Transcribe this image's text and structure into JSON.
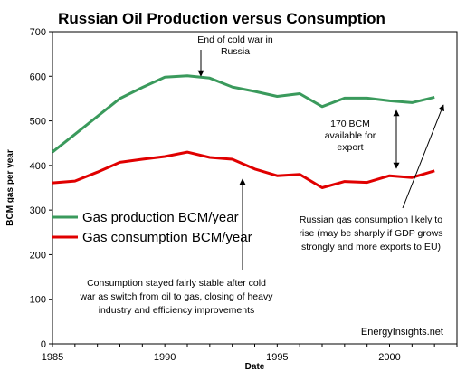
{
  "chart_data": {
    "type": "line",
    "title": "Russian Oil Production versus Consumption",
    "xlabel": "Date",
    "ylabel": "BCM gas per year",
    "xlim": [
      1985,
      2003
    ],
    "ylim": [
      0,
      700
    ],
    "x_ticks": [
      1985,
      1990,
      1995,
      2000
    ],
    "y_ticks": [
      0,
      100,
      200,
      300,
      400,
      500,
      600,
      700
    ],
    "grid": false,
    "legend_position": "left",
    "series": [
      {
        "name": "Gas production BCM/year",
        "color": "#3a9a5c",
        "x": [
          1985,
          1986,
          1987,
          1988,
          1989,
          1990,
          1991,
          1992,
          1993,
          1994,
          1995,
          1996,
          1997,
          1998,
          1999,
          2000,
          2001,
          2002
        ],
        "values": [
          430,
          470,
          510,
          550,
          575,
          598,
          601,
          596,
          576,
          566,
          555,
          561,
          532,
          551,
          551,
          545,
          541,
          553
        ]
      },
      {
        "name": "Gas consumption BCM/year",
        "color": "#e00000",
        "x": [
          1985,
          1986,
          1987,
          1988,
          1989,
          1990,
          1991,
          1992,
          1993,
          1994,
          1995,
          1996,
          1997,
          1998,
          1999,
          2000,
          2001,
          2002
        ],
        "values": [
          361,
          365,
          385,
          407,
          414,
          420,
          430,
          418,
          414,
          392,
          377,
          380,
          350,
          364,
          362,
          377,
          373,
          388
        ]
      }
    ],
    "annotations": [
      {
        "id": "coldwar",
        "lines": [
          "End of cold war in",
          "Russia"
        ]
      },
      {
        "id": "bcm",
        "lines": [
          "170 BCM",
          "available for",
          "export"
        ]
      },
      {
        "id": "risegas",
        "lines": [
          "Russian gas consumption likely to",
          "rise (may be sharply if GDP grows",
          "strongly and more exports to EU)"
        ]
      },
      {
        "id": "stable",
        "lines": [
          "Consumption stayed fairly stable after cold",
          "war as switch from oil to gas, closing of heavy",
          "industry and efficiency improvements"
        ]
      }
    ],
    "watermark": "EnergyInsights.net"
  }
}
